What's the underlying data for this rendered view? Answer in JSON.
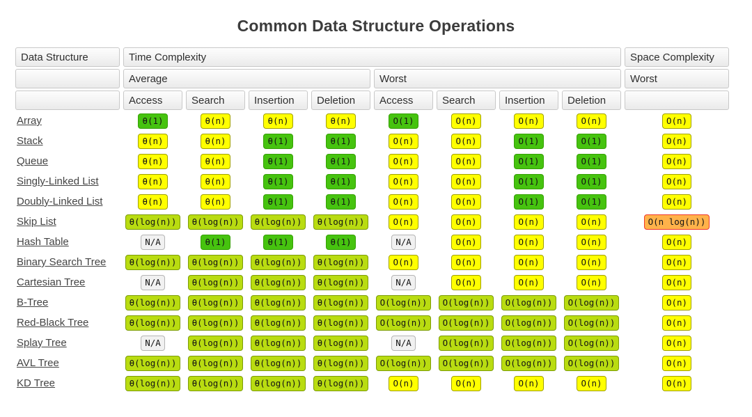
{
  "title": "Common Data Structure Operations",
  "badge_palette": {
    "green": {
      "bg": "#46c30f",
      "border": "#35a005"
    },
    "yellow_green": {
      "bg": "#b9dc11",
      "border": "#7c9c08"
    },
    "yellow": {
      "bg": "#ffff00",
      "border": "#a0a000"
    },
    "orange": {
      "bg": "#ffb24a",
      "border": "#f0372b"
    },
    "gray": {
      "bg": "#f1f1f1",
      "border": "#b4b4b4"
    }
  },
  "header": {
    "data_structure": "Data Structure",
    "time_complexity": "Time Complexity",
    "space_complexity": "Space Complexity",
    "average": "Average",
    "worst": "Worst",
    "space_worst": "Worst",
    "op_columns": [
      "Access",
      "Search",
      "Insertion",
      "Deletion",
      "Access",
      "Search",
      "Insertion",
      "Deletion"
    ]
  },
  "chart_data": {
    "type": "table",
    "title": "Common Data Structure Operations",
    "column_groups": [
      "Data Structure",
      "Time Complexity (Average)",
      "Time Complexity (Worst)",
      "Space Complexity (Worst)"
    ],
    "columns": [
      "Data Structure",
      "Avg Access",
      "Avg Search",
      "Avg Insertion",
      "Avg Deletion",
      "Worst Access",
      "Worst Search",
      "Worst Insertion",
      "Worst Deletion",
      "Space Worst"
    ],
    "rows": [
      {
        "label": "Array",
        "cells": [
          {
            "t": "θ(1)",
            "c": "green"
          },
          {
            "t": "θ(n)",
            "c": "yellow"
          },
          {
            "t": "θ(n)",
            "c": "yellow"
          },
          {
            "t": "θ(n)",
            "c": "yellow"
          },
          {
            "t": "O(1)",
            "c": "green"
          },
          {
            "t": "O(n)",
            "c": "yellow"
          },
          {
            "t": "O(n)",
            "c": "yellow"
          },
          {
            "t": "O(n)",
            "c": "yellow"
          },
          {
            "t": "O(n)",
            "c": "yellow"
          }
        ]
      },
      {
        "label": "Stack",
        "cells": [
          {
            "t": "θ(n)",
            "c": "yellow"
          },
          {
            "t": "θ(n)",
            "c": "yellow"
          },
          {
            "t": "θ(1)",
            "c": "green"
          },
          {
            "t": "θ(1)",
            "c": "green"
          },
          {
            "t": "O(n)",
            "c": "yellow"
          },
          {
            "t": "O(n)",
            "c": "yellow"
          },
          {
            "t": "O(1)",
            "c": "green"
          },
          {
            "t": "O(1)",
            "c": "green"
          },
          {
            "t": "O(n)",
            "c": "yellow"
          }
        ]
      },
      {
        "label": "Queue",
        "cells": [
          {
            "t": "θ(n)",
            "c": "yellow"
          },
          {
            "t": "θ(n)",
            "c": "yellow"
          },
          {
            "t": "θ(1)",
            "c": "green"
          },
          {
            "t": "θ(1)",
            "c": "green"
          },
          {
            "t": "O(n)",
            "c": "yellow"
          },
          {
            "t": "O(n)",
            "c": "yellow"
          },
          {
            "t": "O(1)",
            "c": "green"
          },
          {
            "t": "O(1)",
            "c": "green"
          },
          {
            "t": "O(n)",
            "c": "yellow"
          }
        ]
      },
      {
        "label": "Singly-Linked List",
        "cells": [
          {
            "t": "θ(n)",
            "c": "yellow"
          },
          {
            "t": "θ(n)",
            "c": "yellow"
          },
          {
            "t": "θ(1)",
            "c": "green"
          },
          {
            "t": "θ(1)",
            "c": "green"
          },
          {
            "t": "O(n)",
            "c": "yellow"
          },
          {
            "t": "O(n)",
            "c": "yellow"
          },
          {
            "t": "O(1)",
            "c": "green"
          },
          {
            "t": "O(1)",
            "c": "green"
          },
          {
            "t": "O(n)",
            "c": "yellow"
          }
        ]
      },
      {
        "label": "Doubly-Linked List",
        "cells": [
          {
            "t": "θ(n)",
            "c": "yellow"
          },
          {
            "t": "θ(n)",
            "c": "yellow"
          },
          {
            "t": "θ(1)",
            "c": "green"
          },
          {
            "t": "θ(1)",
            "c": "green"
          },
          {
            "t": "O(n)",
            "c": "yellow"
          },
          {
            "t": "O(n)",
            "c": "yellow"
          },
          {
            "t": "O(1)",
            "c": "green"
          },
          {
            "t": "O(1)",
            "c": "green"
          },
          {
            "t": "O(n)",
            "c": "yellow"
          }
        ]
      },
      {
        "label": "Skip List",
        "cells": [
          {
            "t": "θ(log(n))",
            "c": "yellow_green"
          },
          {
            "t": "θ(log(n))",
            "c": "yellow_green"
          },
          {
            "t": "θ(log(n))",
            "c": "yellow_green"
          },
          {
            "t": "θ(log(n))",
            "c": "yellow_green"
          },
          {
            "t": "O(n)",
            "c": "yellow"
          },
          {
            "t": "O(n)",
            "c": "yellow"
          },
          {
            "t": "O(n)",
            "c": "yellow"
          },
          {
            "t": "O(n)",
            "c": "yellow"
          },
          {
            "t": "O(n log(n))",
            "c": "orange"
          }
        ]
      },
      {
        "label": "Hash Table",
        "cells": [
          {
            "t": "N/A",
            "c": "gray"
          },
          {
            "t": "θ(1)",
            "c": "green"
          },
          {
            "t": "θ(1)",
            "c": "green"
          },
          {
            "t": "θ(1)",
            "c": "green"
          },
          {
            "t": "N/A",
            "c": "gray"
          },
          {
            "t": "O(n)",
            "c": "yellow"
          },
          {
            "t": "O(n)",
            "c": "yellow"
          },
          {
            "t": "O(n)",
            "c": "yellow"
          },
          {
            "t": "O(n)",
            "c": "yellow"
          }
        ]
      },
      {
        "label": "Binary Search Tree",
        "cells": [
          {
            "t": "θ(log(n))",
            "c": "yellow_green"
          },
          {
            "t": "θ(log(n))",
            "c": "yellow_green"
          },
          {
            "t": "θ(log(n))",
            "c": "yellow_green"
          },
          {
            "t": "θ(log(n))",
            "c": "yellow_green"
          },
          {
            "t": "O(n)",
            "c": "yellow"
          },
          {
            "t": "O(n)",
            "c": "yellow"
          },
          {
            "t": "O(n)",
            "c": "yellow"
          },
          {
            "t": "O(n)",
            "c": "yellow"
          },
          {
            "t": "O(n)",
            "c": "yellow"
          }
        ]
      },
      {
        "label": "Cartesian Tree",
        "cells": [
          {
            "t": "N/A",
            "c": "gray"
          },
          {
            "t": "θ(log(n))",
            "c": "yellow_green"
          },
          {
            "t": "θ(log(n))",
            "c": "yellow_green"
          },
          {
            "t": "θ(log(n))",
            "c": "yellow_green"
          },
          {
            "t": "N/A",
            "c": "gray"
          },
          {
            "t": "O(n)",
            "c": "yellow"
          },
          {
            "t": "O(n)",
            "c": "yellow"
          },
          {
            "t": "O(n)",
            "c": "yellow"
          },
          {
            "t": "O(n)",
            "c": "yellow"
          }
        ]
      },
      {
        "label": "B-Tree",
        "cells": [
          {
            "t": "θ(log(n))",
            "c": "yellow_green"
          },
          {
            "t": "θ(log(n))",
            "c": "yellow_green"
          },
          {
            "t": "θ(log(n))",
            "c": "yellow_green"
          },
          {
            "t": "θ(log(n))",
            "c": "yellow_green"
          },
          {
            "t": "O(log(n))",
            "c": "yellow_green"
          },
          {
            "t": "O(log(n))",
            "c": "yellow_green"
          },
          {
            "t": "O(log(n))",
            "c": "yellow_green"
          },
          {
            "t": "O(log(n))",
            "c": "yellow_green"
          },
          {
            "t": "O(n)",
            "c": "yellow"
          }
        ]
      },
      {
        "label": "Red-Black Tree",
        "cells": [
          {
            "t": "θ(log(n))",
            "c": "yellow_green"
          },
          {
            "t": "θ(log(n))",
            "c": "yellow_green"
          },
          {
            "t": "θ(log(n))",
            "c": "yellow_green"
          },
          {
            "t": "θ(log(n))",
            "c": "yellow_green"
          },
          {
            "t": "O(log(n))",
            "c": "yellow_green"
          },
          {
            "t": "O(log(n))",
            "c": "yellow_green"
          },
          {
            "t": "O(log(n))",
            "c": "yellow_green"
          },
          {
            "t": "O(log(n))",
            "c": "yellow_green"
          },
          {
            "t": "O(n)",
            "c": "yellow"
          }
        ]
      },
      {
        "label": "Splay Tree",
        "cells": [
          {
            "t": "N/A",
            "c": "gray"
          },
          {
            "t": "θ(log(n))",
            "c": "yellow_green"
          },
          {
            "t": "θ(log(n))",
            "c": "yellow_green"
          },
          {
            "t": "θ(log(n))",
            "c": "yellow_green"
          },
          {
            "t": "N/A",
            "c": "gray"
          },
          {
            "t": "O(log(n))",
            "c": "yellow_green"
          },
          {
            "t": "O(log(n))",
            "c": "yellow_green"
          },
          {
            "t": "O(log(n))",
            "c": "yellow_green"
          },
          {
            "t": "O(n)",
            "c": "yellow"
          }
        ]
      },
      {
        "label": "AVL Tree",
        "cells": [
          {
            "t": "θ(log(n))",
            "c": "yellow_green"
          },
          {
            "t": "θ(log(n))",
            "c": "yellow_green"
          },
          {
            "t": "θ(log(n))",
            "c": "yellow_green"
          },
          {
            "t": "θ(log(n))",
            "c": "yellow_green"
          },
          {
            "t": "O(log(n))",
            "c": "yellow_green"
          },
          {
            "t": "O(log(n))",
            "c": "yellow_green"
          },
          {
            "t": "O(log(n))",
            "c": "yellow_green"
          },
          {
            "t": "O(log(n))",
            "c": "yellow_green"
          },
          {
            "t": "O(n)",
            "c": "yellow"
          }
        ]
      },
      {
        "label": "KD Tree",
        "cells": [
          {
            "t": "θ(log(n))",
            "c": "yellow_green"
          },
          {
            "t": "θ(log(n))",
            "c": "yellow_green"
          },
          {
            "t": "θ(log(n))",
            "c": "yellow_green"
          },
          {
            "t": "θ(log(n))",
            "c": "yellow_green"
          },
          {
            "t": "O(n)",
            "c": "yellow"
          },
          {
            "t": "O(n)",
            "c": "yellow"
          },
          {
            "t": "O(n)",
            "c": "yellow"
          },
          {
            "t": "O(n)",
            "c": "yellow"
          },
          {
            "t": "O(n)",
            "c": "yellow"
          }
        ]
      }
    ]
  }
}
